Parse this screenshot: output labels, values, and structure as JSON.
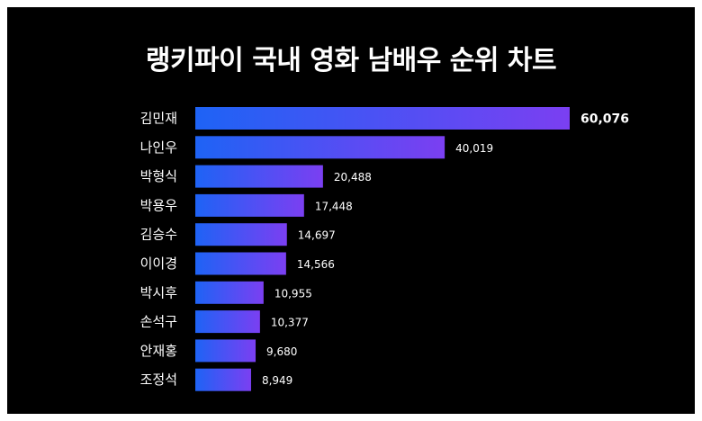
{
  "colors": {
    "background": "#000000",
    "bar_start": "#1e63f5",
    "bar_end": "#7b3ff2",
    "text": "#ffffff"
  },
  "chart_data": {
    "type": "bar",
    "orientation": "horizontal",
    "title": "랭키파이 국내 영화 남배우 순위 차트",
    "xlabel": "",
    "ylabel": "",
    "categories": [
      "김민재",
      "나인우",
      "박형식",
      "박용우",
      "김승수",
      "이이경",
      "박시후",
      "손석구",
      "안재홍",
      "조정석"
    ],
    "values": [
      60076,
      40019,
      20488,
      17448,
      14697,
      14566,
      10955,
      10377,
      9680,
      8949
    ],
    "value_labels": [
      "60,076",
      "40,019",
      "20,488",
      "17,448",
      "14,697",
      "14,566",
      "10,955",
      "10,377",
      "9,680",
      "8,949"
    ],
    "xlim": [
      0,
      60076
    ],
    "grid": false,
    "legend": "none"
  }
}
